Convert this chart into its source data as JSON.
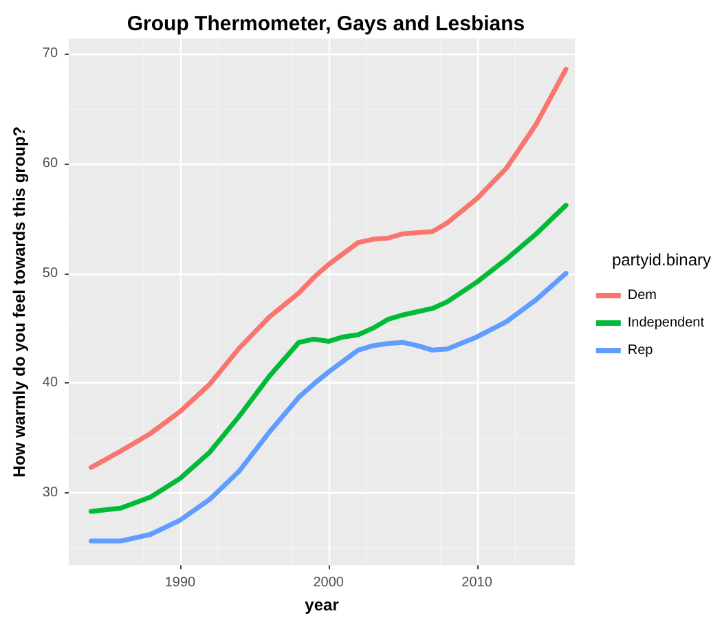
{
  "chart_data": {
    "type": "line",
    "title": "Group Thermometer, Gays and Lesbians",
    "xlabel": "year",
    "ylabel": "How warmly do you feel towards this group?",
    "legend_title": "partyid.binary",
    "x": [
      1984,
      1986,
      1988,
      1990,
      1992,
      1994,
      1996,
      1998,
      1999,
      2000,
      2001,
      2002,
      2003,
      2004,
      2005,
      2006,
      2007,
      2008,
      2010,
      2012,
      2014,
      2016
    ],
    "series": [
      {
        "name": "Dem",
        "color": "#f8766d",
        "values": [
          32.3,
          33.8,
          35.4,
          37.4,
          39.9,
          43.2,
          46.0,
          48.2,
          49.6,
          50.8,
          51.8,
          52.8,
          53.1,
          53.2,
          53.6,
          53.7,
          53.8,
          54.6,
          56.8,
          59.6,
          63.6,
          68.6
        ]
      },
      {
        "name": "Independent",
        "color": "#00ba38",
        "values": [
          28.3,
          28.6,
          29.6,
          31.3,
          33.7,
          37.0,
          40.6,
          43.7,
          44.0,
          43.8,
          44.2,
          44.4,
          45.0,
          45.8,
          46.2,
          46.5,
          46.8,
          47.4,
          49.2,
          51.3,
          53.6,
          56.2
        ]
      },
      {
        "name": "Rep",
        "color": "#619cff",
        "values": [
          25.6,
          25.6,
          26.2,
          27.5,
          29.4,
          32.0,
          35.5,
          38.7,
          39.9,
          41.0,
          42.0,
          43.0,
          43.4,
          43.6,
          43.7,
          43.4,
          43.0,
          43.1,
          44.2,
          45.6,
          47.6,
          50.0
        ]
      }
    ],
    "xlim": [
      1982.5,
      2016.6
    ],
    "xticks": [
      1990,
      2000,
      2010
    ],
    "ylim": [
      23.4,
      71.4
    ],
    "yticks": [
      30,
      40,
      50,
      60,
      70
    ],
    "grid": true,
    "legend": "right",
    "marker": "none",
    "line_style": "solid"
  }
}
